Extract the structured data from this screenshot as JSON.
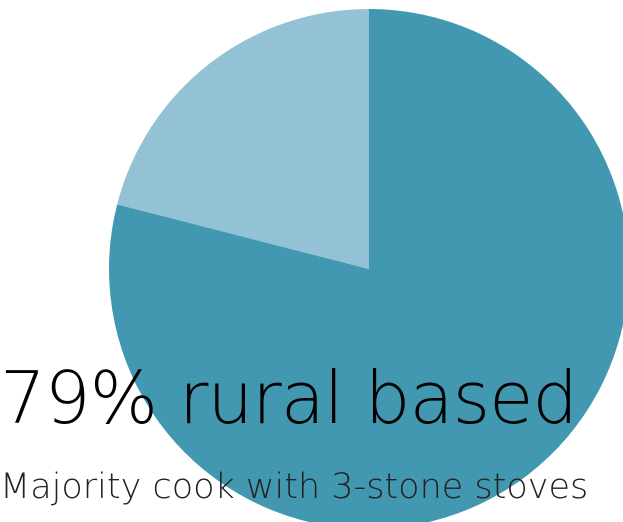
{
  "chart_data": {
    "type": "pie",
    "title": "",
    "slices": [
      {
        "value": 79,
        "color": "#4298b0"
      },
      {
        "value": 21,
        "color": "#93c2d4"
      }
    ],
    "start_angle_deg": 0,
    "direction": "clockwise"
  },
  "headline": "79% rural based",
  "subline": "Majority cook with 3-stone stoves"
}
